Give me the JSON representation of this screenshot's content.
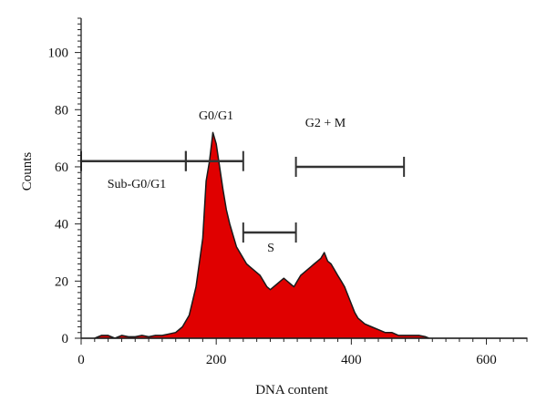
{
  "chart_data": {
    "type": "area",
    "xlabel": "DNA content",
    "ylabel": "Counts",
    "xlim": [
      0,
      660
    ],
    "ylim": [
      0,
      112
    ],
    "x_ticks": [
      0,
      200,
      400,
      600
    ],
    "y_ticks": [
      0,
      20,
      40,
      60,
      80,
      100
    ],
    "grid": false,
    "fill_color": "#e00000",
    "outline_color": "#1a1a1a",
    "series": [
      {
        "x": [
          0,
          20,
          30,
          40,
          50,
          60,
          70,
          80,
          90,
          100,
          110,
          120,
          130,
          140,
          150,
          160,
          170,
          180,
          185,
          190,
          195,
          200,
          205,
          210,
          215,
          220,
          225,
          230,
          235,
          240,
          245,
          250,
          255,
          260,
          265,
          270,
          275,
          280,
          285,
          290,
          295,
          300,
          305,
          310,
          315,
          320,
          325,
          330,
          335,
          340,
          345,
          350,
          355,
          360,
          365,
          370,
          375,
          380,
          385,
          390,
          395,
          400,
          405,
          410,
          420,
          430,
          440,
          450,
          460,
          470,
          480,
          490,
          500,
          510,
          515,
          520,
          660
        ],
        "y": [
          0,
          0,
          1,
          1,
          0,
          1,
          0.5,
          0.5,
          1,
          0.5,
          1,
          1,
          1.5,
          2,
          4,
          8,
          18,
          35,
          55,
          62,
          72,
          68,
          60,
          52,
          45,
          40,
          36,
          32,
          30,
          28,
          26,
          25,
          24,
          23,
          22,
          20,
          18,
          17,
          18,
          19,
          20,
          21,
          20,
          19,
          18,
          20,
          22,
          23,
          24,
          25,
          26,
          27,
          28,
          30,
          27,
          26,
          24,
          22,
          20,
          18,
          15,
          12,
          9,
          7,
          5,
          4,
          3,
          2,
          2,
          1,
          1,
          1,
          1,
          0.5,
          0,
          0,
          0
        ]
      }
    ],
    "gates": [
      {
        "label": "Sub-G0/G1",
        "x_start": 0,
        "x_end": 155,
        "y": 62
      },
      {
        "label": "G0/G1",
        "x_start": 155,
        "x_end": 240,
        "y": 62
      },
      {
        "label": "S",
        "x_start": 240,
        "x_end": 318,
        "y": 37
      },
      {
        "label": "G2 + M",
        "x_start": 318,
        "x_end": 478,
        "y": 60
      }
    ]
  }
}
